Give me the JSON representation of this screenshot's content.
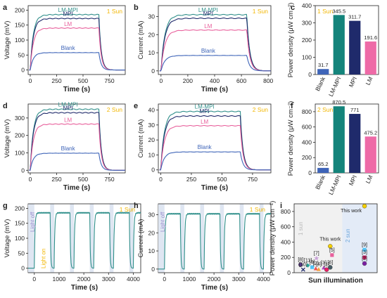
{
  "chart_data": [
    {
      "panel": "a",
      "type": "line",
      "xlabel": "Time (s)",
      "ylabel": "Voltage (mV)",
      "xlim": [
        -20,
        900
      ],
      "ylim": [
        -15,
        215
      ],
      "xticks": [
        0,
        250,
        500,
        750
      ],
      "yticks": [
        0,
        50,
        100,
        150,
        200
      ],
      "annotation": "1 Sun",
      "off_time": 650,
      "series": [
        {
          "name": "LM-MPI",
          "plateau": 185,
          "color": "#2f8f8a"
        },
        {
          "name": "MPI",
          "plateau": 172,
          "color": "#1f2a6b"
        },
        {
          "name": "LM",
          "plateau": 140,
          "color": "#e8609c"
        },
        {
          "name": "Blank",
          "plateau": 58,
          "color": "#3e64b8"
        }
      ]
    },
    {
      "panel": "b",
      "type": "line",
      "xlabel": "Time (s)",
      "ylabel": "Current (mA)",
      "xlim": [
        -20,
        820
      ],
      "ylim": [
        -2,
        36
      ],
      "xticks": [
        0,
        200,
        400,
        600,
        800
      ],
      "yticks": [
        0,
        10,
        20,
        30
      ],
      "annotation": "1 Sun",
      "off_time": 640,
      "series": [
        {
          "name": "LM-MPI",
          "plateau": 31,
          "color": "#2f8f8a"
        },
        {
          "name": "MPI",
          "plateau": 29,
          "color": "#1f2a6b"
        },
        {
          "name": "LM",
          "plateau": 22.5,
          "color": "#e8609c"
        },
        {
          "name": "Blank",
          "plateau": 8.5,
          "color": "#3e64b8"
        }
      ]
    },
    {
      "panel": "c",
      "type": "bar",
      "ylabel": "Power density (μW cm⁻²)",
      "ylim": [
        0,
        400
      ],
      "yticks": [
        0,
        100,
        200,
        300,
        400
      ],
      "annotation": "1 Sun",
      "categories": [
        "Blank",
        "LM-MPI",
        "MPI",
        "LM"
      ],
      "values": [
        31.7,
        345.5,
        311.7,
        191.6
      ],
      "value_labels": [
        "31.7",
        "345.5",
        "311.7",
        "191.6"
      ],
      "colors": [
        "#3e64b8",
        "#14847b",
        "#1f2a6b",
        "#ee6aa7"
      ]
    },
    {
      "panel": "d",
      "type": "line",
      "xlabel": "Time (s)",
      "ylabel": "Voltage (mV)",
      "xlim": [
        -20,
        900
      ],
      "ylim": [
        -15,
        380
      ],
      "xticks": [
        0,
        250,
        500,
        750
      ],
      "yticks": [
        0,
        100,
        200,
        300
      ],
      "annotation": "2 Sun",
      "off_time": 650,
      "series": [
        {
          "name": "LM-MPI",
          "plateau": 350,
          "color": "#2f8f8a"
        },
        {
          "name": "MPI",
          "plateau": 330,
          "color": "#1f2a6b"
        },
        {
          "name": "LM",
          "plateau": 265,
          "color": "#e8609c"
        },
        {
          "name": "Blank",
          "plateau": 98,
          "color": "#3e64b8"
        }
      ]
    },
    {
      "panel": "e",
      "type": "line",
      "xlabel": "Time (s)",
      "ylabel": "Current (mA)",
      "xlim": [
        -20,
        900
      ],
      "ylim": [
        -2,
        44
      ],
      "xticks": [
        0,
        250,
        500,
        750
      ],
      "yticks": [
        0,
        10,
        20,
        30,
        40
      ],
      "annotation": "2 Sun",
      "off_time": 650,
      "series": [
        {
          "name": "LM-MPI",
          "plateau": 39,
          "color": "#2f8f8a"
        },
        {
          "name": "MPI",
          "plateau": 36,
          "color": "#1f2a6b"
        },
        {
          "name": "LM",
          "plateau": 29.5,
          "color": "#e8609c"
        },
        {
          "name": "Blank",
          "plateau": 12,
          "color": "#3e64b8"
        }
      ]
    },
    {
      "panel": "f",
      "type": "bar",
      "ylabel": "Power density (μW cm⁻²)",
      "ylim": [
        0,
        900
      ],
      "yticks": [
        0,
        200,
        400,
        600,
        800
      ],
      "annotation": "2 Sun",
      "categories": [
        "Blank",
        "LM-MPI",
        "MPI",
        "LM"
      ],
      "values": [
        65.2,
        870.5,
        771,
        475.2
      ],
      "value_labels": [
        "65.2",
        "870.5",
        "771",
        "475.2"
      ],
      "colors": [
        "#3e64b8",
        "#14847b",
        "#1f2a6b",
        "#ee6aa7"
      ]
    },
    {
      "panel": "g",
      "type": "line",
      "xlabel": "Time (s)",
      "ylabel": "Voltage (mV)",
      "xlim": [
        -250,
        4300
      ],
      "ylim": [
        -15,
        215
      ],
      "xticks": [
        0,
        1000,
        2000,
        3000,
        4000
      ],
      "yticks": [
        0,
        50,
        100,
        150,
        200
      ],
      "annotation": "1 Sun",
      "light_off_label": "Light off",
      "light_on_label": "Light on",
      "on_intervals": [
        [
          0,
          640
        ],
        [
          800,
          1440
        ],
        [
          1600,
          2240
        ],
        [
          2400,
          3040
        ],
        [
          3200,
          3840
        ],
        [
          4000,
          4300
        ]
      ],
      "shade_color": "#dfe6f2",
      "plateau": 185,
      "color": "#2f8f8a"
    },
    {
      "panel": "h",
      "type": "line",
      "xlabel": "Time (s)",
      "ylabel": "Current (mA)",
      "xlim": [
        -250,
        4300
      ],
      "ylim": [
        -2,
        36
      ],
      "xticks": [
        0,
        1000,
        2000,
        3000,
        4000
      ],
      "yticks": [
        0,
        10,
        20,
        30
      ],
      "annotation": "1 Sun",
      "light_off_label": "Light off",
      "on_intervals": [
        [
          0,
          640
        ],
        [
          800,
          1440
        ],
        [
          1600,
          2240
        ],
        [
          2400,
          3040
        ],
        [
          3200,
          3840
        ],
        [
          4000,
          4300
        ]
      ],
      "shade_color": "#dfe6f2",
      "plateau": 30.5,
      "color": "#2f8f8a"
    },
    {
      "panel": "i",
      "type": "scatter",
      "xlabel": "Sun illumination",
      "ylabel": "Power density (μW cm⁻²)",
      "ylim": [
        0,
        900
      ],
      "yticks": [
        0,
        200,
        400,
        600,
        800
      ],
      "region_labels": [
        "1 sun",
        "2 sun"
      ],
      "points": [
        {
          "label": "This work",
          "x": 1.0,
          "y": 345.5,
          "shape": "circle",
          "color": "#f5d000"
        },
        {
          "label": "This work",
          "x": 1.95,
          "y": 870.5,
          "shape": "circle",
          "color": "#f5d000"
        },
        {
          "label": "[7]",
          "x": 0.62,
          "y": 190,
          "shape": "star",
          "color": "#c9a3d8"
        },
        {
          "label": "[5]",
          "x": 1.05,
          "y": 230,
          "shape": "square",
          "color": "#e8609c"
        },
        {
          "label": "[8]",
          "x": 0.18,
          "y": 105,
          "shape": "circle",
          "color": "#5b3b8c"
        },
        {
          "label": "[11]",
          "x": 0.38,
          "y": 95,
          "shape": "diamond",
          "color": "#26a69a"
        },
        {
          "label": "[9]",
          "x": 0.5,
          "y": 72,
          "shape": "square",
          "color": "#4fc3f7"
        },
        {
          "label": "[2]",
          "x": 0.6,
          "y": 55,
          "shape": "triangle",
          "color": "#ef5350"
        },
        {
          "label": "[4]",
          "x": 0.68,
          "y": 45,
          "shape": "triangle",
          "color": "#f4a340"
        },
        {
          "label": "[3]",
          "x": 0.82,
          "y": 65,
          "shape": "triangle",
          "color": "#ab47bc"
        },
        {
          "label": "[1]",
          "x": 0.9,
          "y": 40,
          "shape": "circle",
          "color": "#e91e63"
        },
        {
          "label": "[10]",
          "x": 0.25,
          "y": 40,
          "shape": "x",
          "color": "#1f2a6b"
        },
        {
          "label": "[6]",
          "x": 1.0,
          "y": 70,
          "shape": "circle",
          "color": "#455a64"
        },
        {
          "label": "[9]",
          "x": 1.95,
          "y": 300,
          "shape": "square",
          "color": "#4fc3f7"
        },
        {
          "label": "[3]",
          "x": 1.95,
          "y": 200,
          "shape": "square",
          "color": "#c2185b"
        },
        {
          "label": "[2]",
          "x": 1.95,
          "y": 120,
          "shape": "circle",
          "color": "#7b1fa2"
        }
      ]
    }
  ],
  "panel_letters": [
    "a",
    "b",
    "c",
    "d",
    "e",
    "f",
    "g",
    "h",
    "i"
  ]
}
